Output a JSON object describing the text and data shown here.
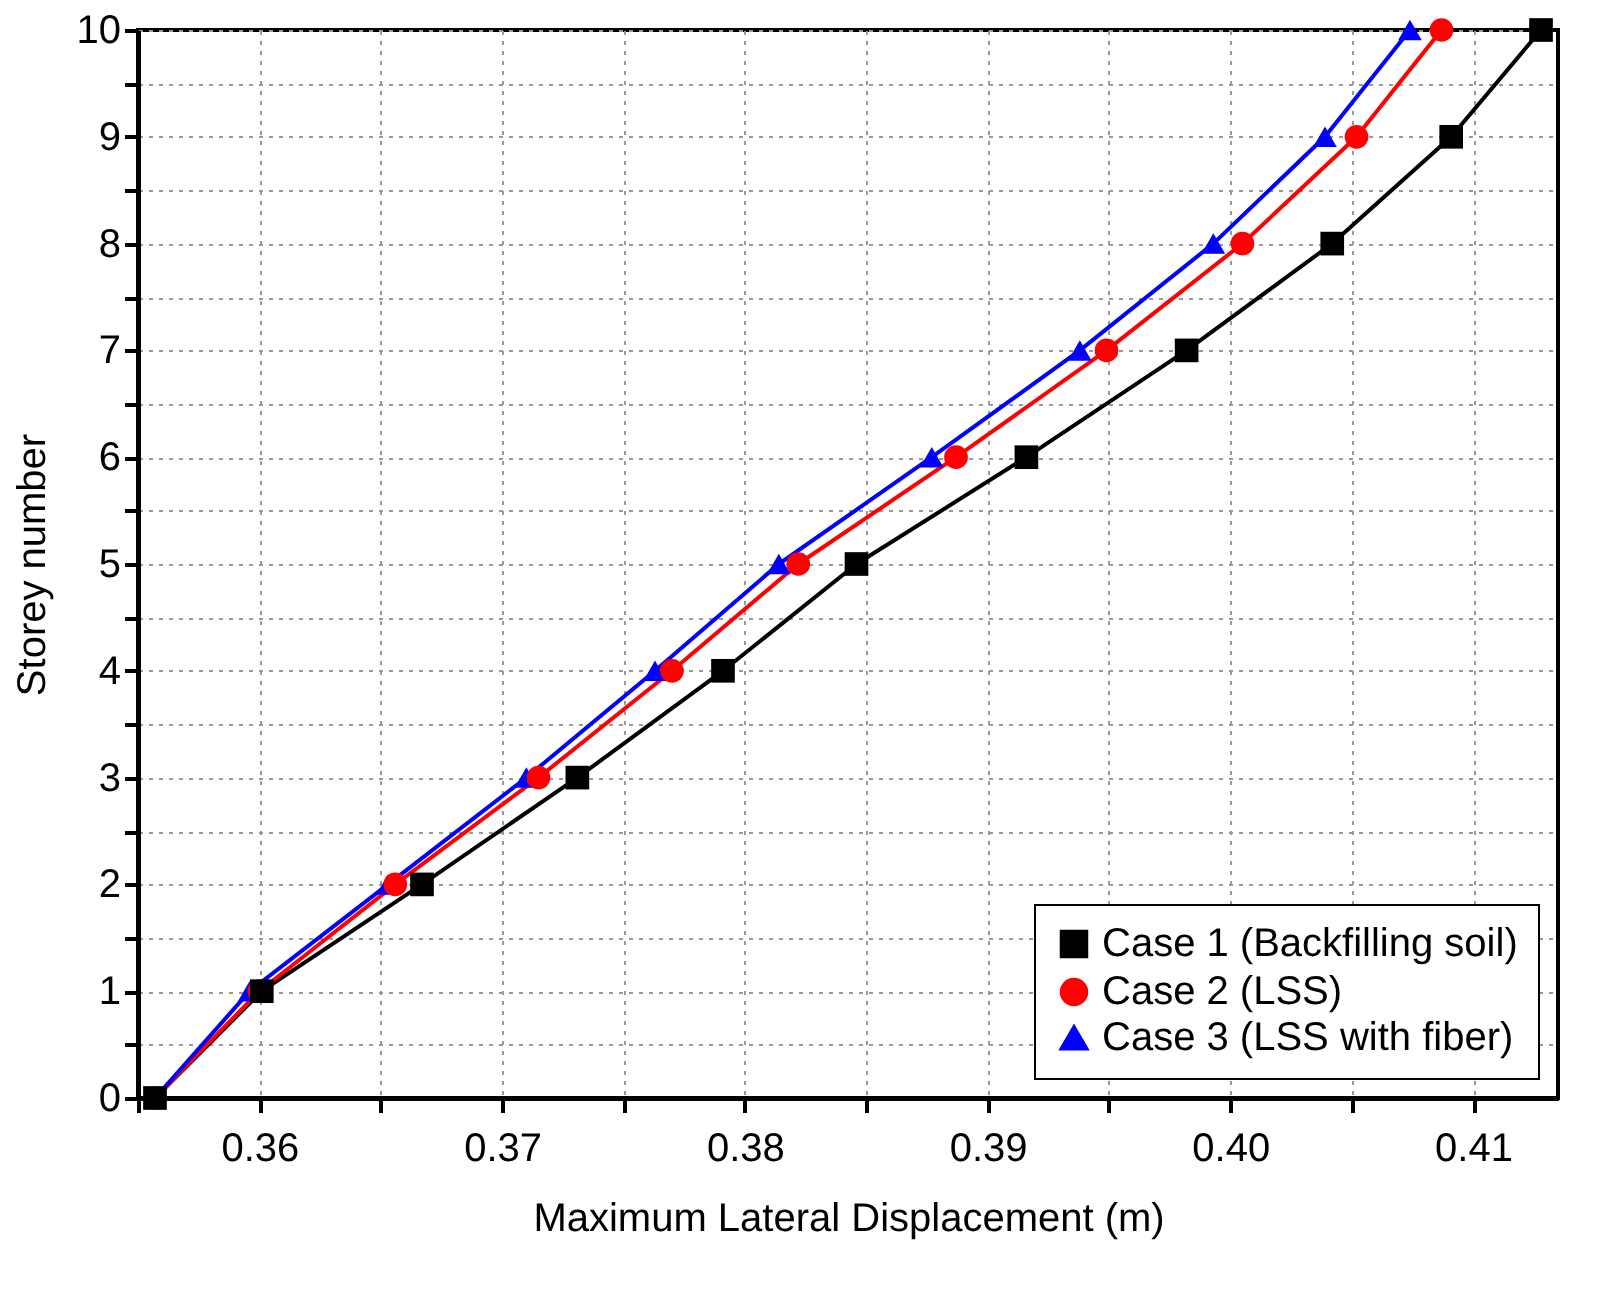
{
  "chart_data": {
    "type": "line",
    "xlabel": "Maximum Lateral Displacement (m)",
    "ylabel": "Storey number",
    "xlim": [
      0.355,
      0.4135
    ],
    "ylim": [
      0,
      10
    ],
    "xticks": [
      {
        "value": 0.355,
        "label": null
      },
      0.36,
      {
        "value": 0.365,
        "label": null
      },
      0.37,
      {
        "value": 0.375,
        "label": null
      },
      0.38,
      {
        "value": 0.385,
        "label": null
      },
      0.39,
      {
        "value": 0.395,
        "label": null
      },
      {
        "value": 0.4,
        "label": "0.40"
      },
      {
        "value": 0.405,
        "label": null
      },
      0.41
    ],
    "yticks": [
      0,
      {
        "value": 0.5,
        "label": null
      },
      1,
      {
        "value": 1.5,
        "label": null
      },
      2,
      {
        "value": 2.5,
        "label": null
      },
      3,
      {
        "value": 3.5,
        "label": null
      },
      4,
      {
        "value": 4.5,
        "label": null
      },
      5,
      {
        "value": 5.5,
        "label": null
      },
      6,
      {
        "value": 6.5,
        "label": null
      },
      7,
      {
        "value": 7.5,
        "label": null
      },
      8,
      {
        "value": 8.5,
        "label": null
      },
      9,
      {
        "value": 9.5,
        "label": null
      },
      10
    ],
    "grid": true,
    "legend": "bottom right",
    "line_style": "solid",
    "series": [
      {
        "name": "Case 1 (Backfilling soil)",
        "color": "#000000",
        "marker": "square",
        "x": [
          0.3557,
          0.3601,
          0.3667,
          0.3731,
          0.3791,
          0.3846,
          0.3916,
          0.3982,
          0.4042,
          0.4091,
          0.4128
        ],
        "values": [
          0,
          1,
          2,
          3,
          4,
          5,
          6,
          7,
          8,
          9,
          10
        ]
      },
      {
        "name": "Case 2 (LSS)",
        "color": "#ff0000",
        "marker": "circle",
        "x": [
          0.3557,
          0.36,
          0.3656,
          0.3715,
          0.377,
          0.3822,
          0.3887,
          0.3949,
          0.4005,
          0.4052,
          0.4087
        ],
        "values": [
          0,
          1,
          2,
          3,
          4,
          5,
          6,
          7,
          8,
          9,
          10
        ]
      },
      {
        "name": "Case 3 (LSS with fiber)",
        "color": "#0000ff",
        "marker": "triangle",
        "x": [
          0.3557,
          0.3596,
          0.3653,
          0.371,
          0.3763,
          0.3814,
          0.3877,
          0.3938,
          0.3993,
          0.4039,
          0.4074
        ],
        "values": [
          0,
          1,
          2,
          3,
          4,
          5,
          6,
          7,
          8,
          9,
          10
        ]
      }
    ]
  }
}
